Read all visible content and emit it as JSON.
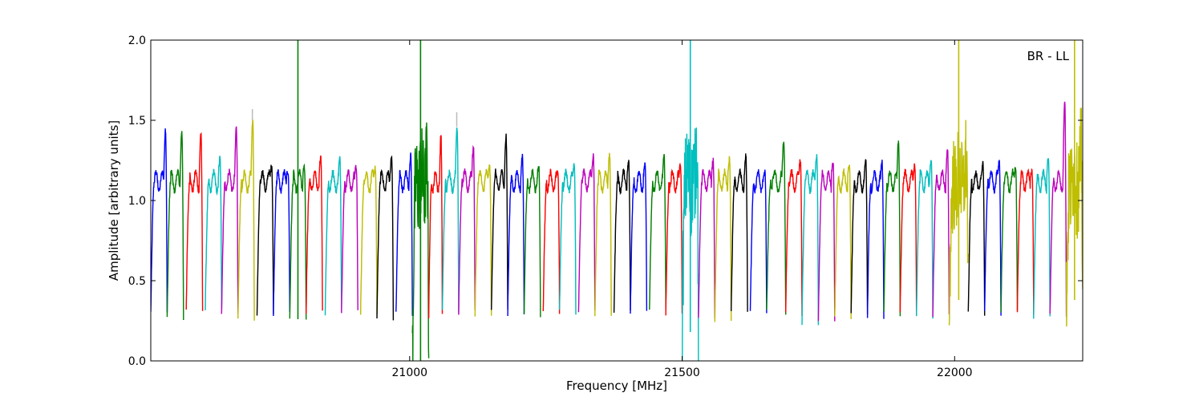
{
  "chart_data": {
    "type": "line",
    "title": "",
    "annotation": "BR - LL",
    "xlabel": "Frequency [MHz]",
    "ylabel": "Amplitude [arbitrary units]",
    "xlim": [
      20525,
      22235
    ],
    "ylim": [
      0.0,
      2.0
    ],
    "x_ticks": [
      21000,
      21500,
      22000
    ],
    "x_tick_labels": [
      "21000",
      "21500",
      "22000"
    ],
    "y_ticks": [
      0.0,
      0.5,
      1.0,
      1.5,
      2.0
    ],
    "y_tick_labels": [
      "0.0",
      "0.5",
      "1.0",
      "1.5",
      "2.0"
    ],
    "grid": false,
    "color_cycle": [
      "#0000ff",
      "#008000",
      "#ff0000",
      "#00bfbf",
      "#bf00bf",
      "#bfbf00",
      "#000000"
    ],
    "raw_trace_color": "#bbbbbb",
    "series": [
      {
        "start": 20525,
        "end": 20555,
        "peak": 1.45,
        "min": 0.3
      },
      {
        "start": 20555,
        "end": 20585,
        "peak": 1.43,
        "min": 0.26
      },
      {
        "start": 20590,
        "end": 20620,
        "peak": 1.42,
        "min": 0.33
      },
      {
        "start": 20625,
        "end": 20655,
        "peak": 1.27,
        "min": 0.32
      },
      {
        "start": 20655,
        "end": 20685,
        "peak": 1.45,
        "min": 0.3
      },
      {
        "start": 20685,
        "end": 20715,
        "peak": 1.5,
        "min": 0.25,
        "raw_peak": 1.57
      },
      {
        "start": 20720,
        "end": 20750,
        "peak": 1.22,
        "min": 0.29
      },
      {
        "start": 20750,
        "end": 20780,
        "peak": 1.18,
        "min": 0.3
      },
      {
        "start": 20780,
        "end": 20810,
        "peak": 1.21,
        "min": 0.26,
        "spike": 2.0
      },
      {
        "start": 20810,
        "end": 20840,
        "peak": 1.28,
        "min": 0.3
      },
      {
        "start": 20845,
        "end": 20875,
        "peak": 1.26,
        "min": 0.3
      },
      {
        "start": 20875,
        "end": 20905,
        "peak": 1.21,
        "min": 0.31
      },
      {
        "start": 20910,
        "end": 20940,
        "peak": 1.2,
        "min": 0.29
      },
      {
        "start": 20940,
        "end": 20970,
        "peak": 1.27,
        "min": 0.27
      },
      {
        "start": 20975,
        "end": 21005,
        "peak": 1.28,
        "min": 0.29
      },
      {
        "start": 21005,
        "end": 21035,
        "peak": 1.25,
        "min": 0.0,
        "spike": 2.0,
        "noisy": true
      },
      {
        "start": 21035,
        "end": 21060,
        "peak": 1.41,
        "min": 0.28
      },
      {
        "start": 21060,
        "end": 21090,
        "peak": 1.46,
        "min": 0.3,
        "raw_peak": 1.55
      },
      {
        "start": 21090,
        "end": 21120,
        "peak": 1.33,
        "min": 0.3
      },
      {
        "start": 21120,
        "end": 21150,
        "peak": 1.21,
        "min": 0.29
      },
      {
        "start": 21150,
        "end": 21180,
        "peak": 1.4,
        "min": 0.3
      },
      {
        "start": 21180,
        "end": 21210,
        "peak": 1.28,
        "min": 0.3
      },
      {
        "start": 21210,
        "end": 21240,
        "peak": 1.21,
        "min": 0.29
      },
      {
        "start": 21245,
        "end": 21275,
        "peak": 1.18,
        "min": 0.3
      },
      {
        "start": 21275,
        "end": 21305,
        "peak": 1.22,
        "min": 0.3
      },
      {
        "start": 21310,
        "end": 21340,
        "peak": 1.28,
        "min": 0.31
      },
      {
        "start": 21340,
        "end": 21370,
        "peak": 1.28,
        "min": 0.29
      },
      {
        "start": 21375,
        "end": 21405,
        "peak": 1.24,
        "min": 0.31
      },
      {
        "start": 21405,
        "end": 21435,
        "peak": 1.22,
        "min": 0.31
      },
      {
        "start": 21440,
        "end": 21470,
        "peak": 1.27,
        "min": 0.3
      },
      {
        "start": 21470,
        "end": 21500,
        "peak": 1.22,
        "min": 0.28
      },
      {
        "start": 21500,
        "end": 21530,
        "peak": 1.35,
        "min": 0.18,
        "spike": 2.0,
        "noisy": true
      },
      {
        "start": 21530,
        "end": 21560,
        "peak": 1.25,
        "min": 0.25
      },
      {
        "start": 21560,
        "end": 21590,
        "peak": 1.26,
        "min": 0.25
      },
      {
        "start": 21590,
        "end": 21620,
        "peak": 1.28,
        "min": 0.31
      },
      {
        "start": 21625,
        "end": 21655,
        "peak": 1.18,
        "min": 0.3
      },
      {
        "start": 21655,
        "end": 21690,
        "peak": 1.36,
        "min": 0.3
      },
      {
        "start": 21690,
        "end": 21720,
        "peak": 1.25,
        "min": 0.29
      },
      {
        "start": 21720,
        "end": 21750,
        "peak": 1.27,
        "min": 0.24
      },
      {
        "start": 21750,
        "end": 21780,
        "peak": 1.25,
        "min": 0.25
      },
      {
        "start": 21780,
        "end": 21810,
        "peak": 1.22,
        "min": 0.26
      },
      {
        "start": 21810,
        "end": 21840,
        "peak": 1.25,
        "min": 0.29
      },
      {
        "start": 21840,
        "end": 21870,
        "peak": 1.24,
        "min": 0.27
      },
      {
        "start": 21870,
        "end": 21900,
        "peak": 1.36,
        "min": 0.29
      },
      {
        "start": 21900,
        "end": 21930,
        "peak": 1.22,
        "min": 0.29
      },
      {
        "start": 21930,
        "end": 21960,
        "peak": 1.25,
        "min": 0.28
      },
      {
        "start": 21960,
        "end": 21990,
        "peak": 1.31,
        "min": 0.28
      },
      {
        "start": 21990,
        "end": 22025,
        "peak": 1.25,
        "min": 0.38,
        "spike": 2.0,
        "noisy": true
      },
      {
        "start": 22025,
        "end": 22055,
        "peak": 1.24,
        "min": 0.29
      },
      {
        "start": 22055,
        "end": 22085,
        "peak": 1.24,
        "min": 0.3
      },
      {
        "start": 22085,
        "end": 22115,
        "peak": 1.2,
        "min": 0.3
      },
      {
        "start": 22115,
        "end": 22145,
        "peak": 1.18,
        "min": 0.3
      },
      {
        "start": 22145,
        "end": 22175,
        "peak": 1.27,
        "min": 0.27
      },
      {
        "start": 22175,
        "end": 22205,
        "peak": 1.63,
        "min": 0.28
      },
      {
        "start": 22205,
        "end": 22235,
        "peak": 1.3,
        "min": 0.38,
        "spike": 2.0,
        "noisy": true
      }
    ]
  }
}
